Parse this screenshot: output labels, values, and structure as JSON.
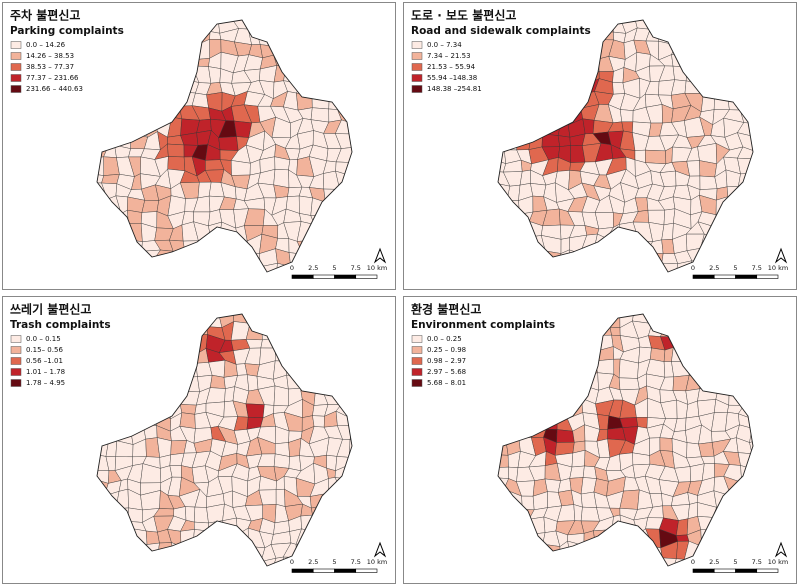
{
  "panels": [
    {
      "title_ko": "주차 불편신고",
      "title_en": "Parking complaints",
      "legend": [
        "0.0 – 14.26",
        "14.26 – 38.53",
        "38.53 – 77.37",
        "77.37 – 231.66",
        "231.66 – 440.63"
      ]
    },
    {
      "title_ko": "도로 · 보도 불편신고",
      "title_en": "Road and sidewalk complaints",
      "legend": [
        "0.0 – 7.34",
        "7.34 – 21.53",
        "21.53 – 55.94",
        "55.94 –148.38",
        "148.38 –254.81"
      ]
    },
    {
      "title_ko": "쓰레기 불편신고",
      "title_en": "Trash complaints",
      "legend": [
        "0.0 – 0.15",
        "0.15– 0.56",
        "0.56 –1.01",
        "1.01 – 1.78",
        "1.78 – 4.95"
      ]
    },
    {
      "title_ko": "환경 불편신고",
      "title_en": "Environment complaints",
      "legend": [
        "0.0 – 0.25",
        "0.25 – 0.98",
        "0.98 – 2.97",
        "2.97 – 5.68",
        "5.68 – 8.01"
      ]
    }
  ],
  "legend_colors": [
    "#fdebe4",
    "#f2b39b",
    "#e0684f",
    "#c0232a",
    "#650a12"
  ],
  "scale_labels": [
    "0",
    "2.5",
    "5",
    "7.5",
    "10 km"
  ]
}
